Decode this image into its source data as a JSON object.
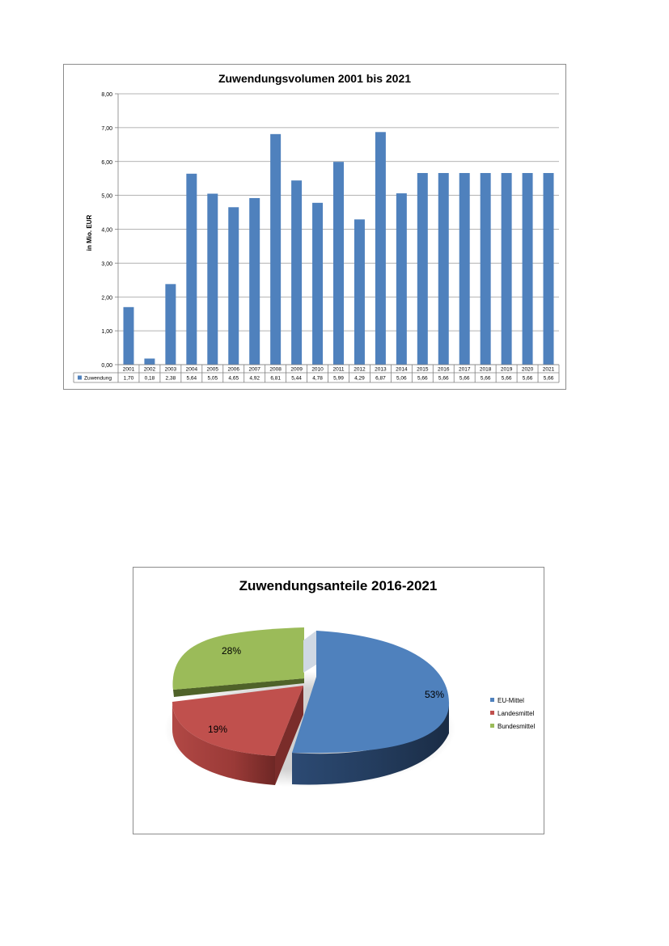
{
  "chart_data": [
    {
      "type": "bar",
      "title": "Zuwendungsvolumen 2001 bis 2021",
      "ylabel": "in Mio. EUR",
      "ylim": [
        0,
        8
      ],
      "yticks": [
        "0,00",
        "1,00",
        "2,00",
        "3,00",
        "4,00",
        "5,00",
        "6,00",
        "7,00",
        "8,00"
      ],
      "grid": true,
      "legend": "data-table",
      "color": "#4f81bd",
      "categories": [
        "2001",
        "2002",
        "2003",
        "2004",
        "2005",
        "2006",
        "2007",
        "2008",
        "2009",
        "2010",
        "2011",
        "2012",
        "2013",
        "2014",
        "2015",
        "2016",
        "2017",
        "2018",
        "2019",
        "2020",
        "2021"
      ],
      "series": [
        {
          "name": "Zuwendung",
          "values": [
            1.7,
            0.18,
            2.38,
            5.64,
            5.05,
            4.65,
            4.92,
            6.81,
            5.44,
            4.78,
            5.99,
            4.29,
            6.87,
            5.06,
            5.66,
            5.66,
            5.66,
            5.66,
            5.66,
            5.66,
            5.66
          ],
          "labels": [
            "1,70",
            "0,18",
            "2,38",
            "5,64",
            "5,05",
            "4,65",
            "4,92",
            "6,81",
            "5,44",
            "4,78",
            "5,99",
            "4,29",
            "6,87",
            "5,06",
            "5,66",
            "5,66",
            "5,66",
            "5,66",
            "5,66",
            "5,66",
            "5,66"
          ]
        }
      ]
    },
    {
      "type": "pie",
      "title": "Zuwendungsanteile 2016-2021",
      "legend": "right",
      "style": "3d-exploded",
      "slices": [
        {
          "name": "EU-Mittel",
          "value": 53,
          "label": "53%",
          "color": "#4f81bd"
        },
        {
          "name": "Landesmittel",
          "value": 19,
          "label": "19%",
          "color": "#c0504d"
        },
        {
          "name": "Bundesmittel",
          "value": 28,
          "label": "28%",
          "color": "#9bbb59"
        }
      ]
    }
  ]
}
